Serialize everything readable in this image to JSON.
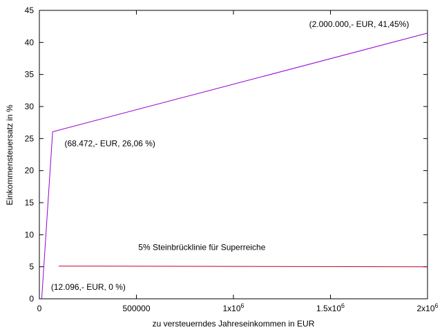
{
  "chart_data": {
    "type": "line",
    "xlabel": "zu versteuerndes Jahreseinkommen in EUR",
    "ylabel": "Einkommensteuersatz in %",
    "xlim": [
      0,
      2000000
    ],
    "ylim": [
      0,
      45
    ],
    "grid": false,
    "x_ticks": [
      {
        "value": 0,
        "label": "0"
      },
      {
        "value": 500000,
        "label": "500000"
      },
      {
        "value": 1000000,
        "label": "1x10",
        "sup": "6"
      },
      {
        "value": 1500000,
        "label": "1.5x10",
        "sup": "6"
      },
      {
        "value": 2000000,
        "label": "2x10",
        "sup": "6"
      }
    ],
    "y_ticks": [
      {
        "value": 0,
        "label": "0"
      },
      {
        "value": 5,
        "label": "5"
      },
      {
        "value": 10,
        "label": "10"
      },
      {
        "value": 15,
        "label": "15"
      },
      {
        "value": 20,
        "label": "20"
      },
      {
        "value": 25,
        "label": "25"
      },
      {
        "value": 30,
        "label": "30"
      },
      {
        "value": 35,
        "label": "35"
      },
      {
        "value": 40,
        "label": "40"
      },
      {
        "value": 45,
        "label": "45"
      }
    ],
    "series": [
      {
        "color": "#9400d3",
        "points": [
          [
            12096,
            0
          ],
          [
            68472,
            26.06
          ],
          [
            2000000,
            41.45
          ]
        ]
      },
      {
        "color": "#c0002a",
        "points": [
          [
            100000,
            5.1
          ],
          [
            2000000,
            5.0
          ]
        ]
      }
    ],
    "annotations": [
      {
        "text": "(2.000.000,- EUR, 41,45%)",
        "x": 1390000,
        "y": 42.4
      },
      {
        "text": "(68.472,- EUR, 26,06 %)",
        "x": 130000,
        "y": 23.8
      },
      {
        "text": "5% Steinbrücklinie für Superreiche",
        "x": 510000,
        "y": 7.6
      },
      {
        "text": "(12.096,- EUR, 0 %)",
        "x": 60000,
        "y": 1.4
      }
    ]
  }
}
